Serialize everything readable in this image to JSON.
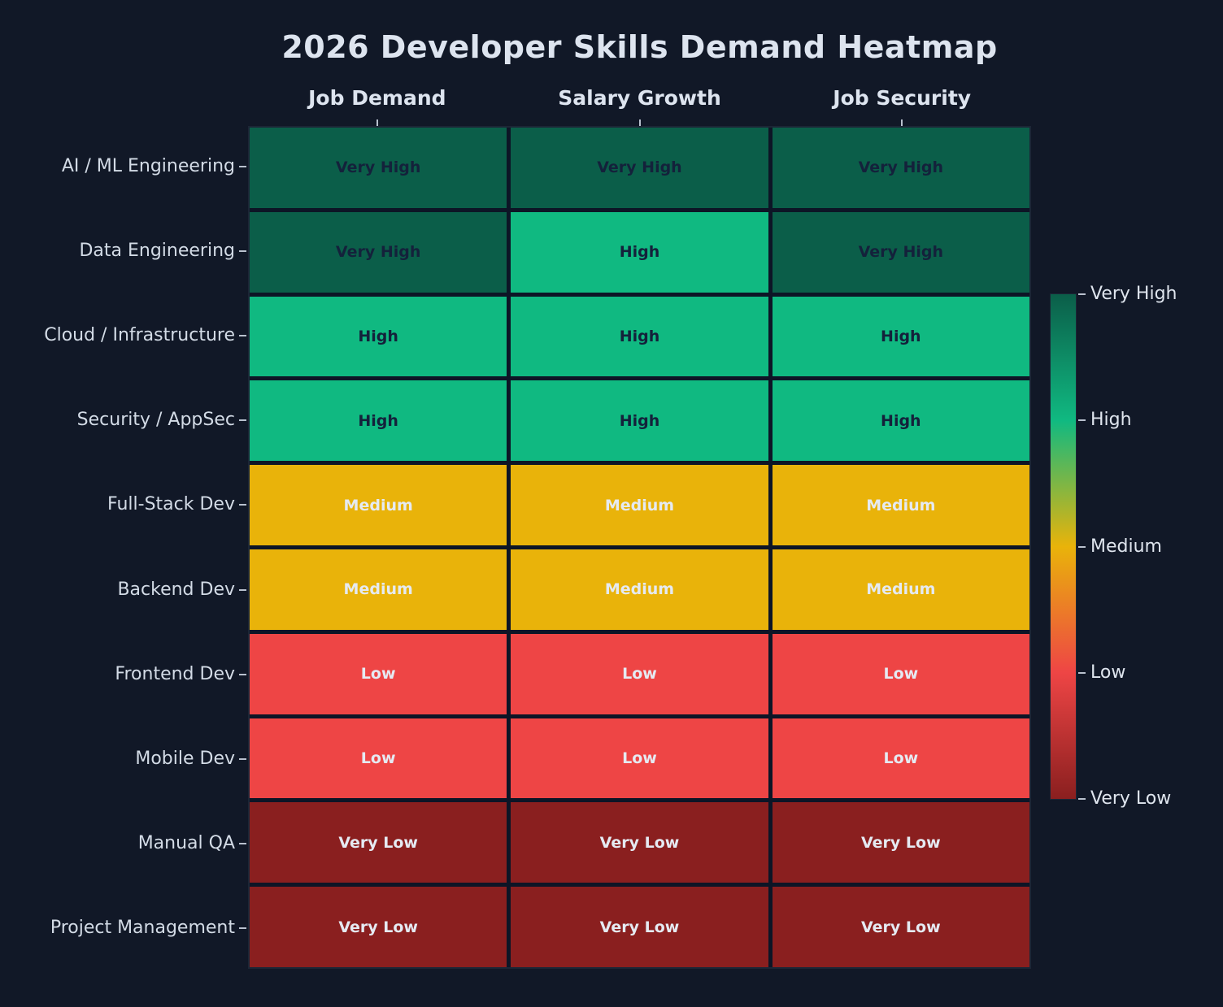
{
  "title": "2026 Developer Skills Demand Heatmap",
  "chart_data": {
    "type": "heatmap",
    "title": "2026 Developer Skills Demand Heatmap",
    "columns": [
      "Job Demand",
      "Salary Growth",
      "Job Security"
    ],
    "rows": [
      "AI / ML Engineering",
      "Data Engineering",
      "Cloud / Infrastructure",
      "Security / AppSec",
      "Full-Stack Dev",
      "Backend Dev",
      "Frontend Dev",
      "Mobile Dev",
      "Manual QA",
      "Project Management"
    ],
    "cells": [
      [
        "Very High",
        "Very High",
        "Very High"
      ],
      [
        "Very High",
        "High",
        "Very High"
      ],
      [
        "High",
        "High",
        "High"
      ],
      [
        "High",
        "High",
        "High"
      ],
      [
        "Medium",
        "Medium",
        "Medium"
      ],
      [
        "Medium",
        "Medium",
        "Medium"
      ],
      [
        "Low",
        "Low",
        "Low"
      ],
      [
        "Low",
        "Low",
        "Low"
      ],
      [
        "Very Low",
        "Very Low",
        "Very Low"
      ],
      [
        "Very Low",
        "Very Low",
        "Very Low"
      ]
    ],
    "value_scale": {
      "Very Low": 1,
      "Low": 2,
      "Medium": 3,
      "High": 4,
      "Very High": 5
    },
    "colorbar": {
      "position": "right",
      "orientation": "vertical",
      "tick_labels": [
        "Very High",
        "High",
        "Medium",
        "Low",
        "Very Low"
      ],
      "stops_top_to_bottom": [
        "#0b5e49",
        "#10b981",
        "#e9b30a",
        "#ee4545",
        "#8a1f1f"
      ]
    },
    "grid": false,
    "legend_position": "right"
  },
  "levels": {
    "Very High": {
      "bg": "#0b5e49",
      "fg": "#14213b"
    },
    "High": {
      "bg": "#10b981",
      "fg": "#14213b"
    },
    "Medium": {
      "bg": "#e9b30a",
      "fg": "#e5eaf2"
    },
    "Low": {
      "bg": "#ee4545",
      "fg": "#e5eaf2"
    },
    "Very Low": {
      "bg": "#8a1f1f",
      "fg": "#e5eaf2"
    }
  },
  "theme": {
    "background": "#111827",
    "gap_color": "#0d1526",
    "title_color": "#dde4ef",
    "label_color": "#d3dbe6",
    "tick_color": "#b9c1ce"
  }
}
